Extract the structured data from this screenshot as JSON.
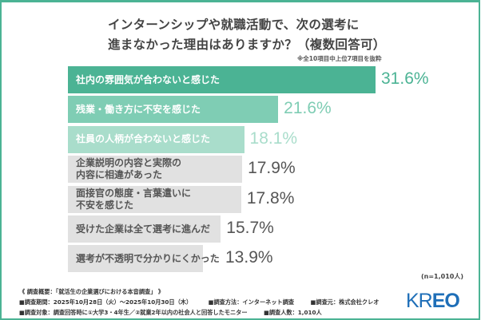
{
  "chart_data": {
    "type": "bar",
    "orientation": "horizontal",
    "title": "インターンシップや就職活動で、次の選考に 進まなかった理由はありますか？（複数回答可）",
    "title_lines": [
      "インターンシップや就職活動で、次の選考に",
      "進まなかった理由はありますか？（複数回答可）"
    ],
    "note": "※全10項目中上位7項目を抜粋",
    "unit": "%",
    "categories": [
      "社内の雰囲気が合わないと感じた",
      "残業・働き方に不安を感じた",
      "社員の人柄が合わないと感じた",
      "企業説明の内容と実際の\n内容に相違があった",
      "面接官の態度・言葉遣いに\n不安を感じた",
      "受けた企業は全て選考に進んだ",
      "選考が不透明で分かりにくかった"
    ],
    "values": [
      31.6,
      21.6,
      18.1,
      17.9,
      17.8,
      15.7,
      13.9
    ],
    "value_labels": [
      "31.6%",
      "21.6%",
      "18.1%",
      "17.9%",
      "17.8%",
      "15.7%",
      "13.9%"
    ],
    "bar_colors": [
      "#4bb394",
      "#7fcdb4",
      "#a9ddcb",
      "#e1e1e1",
      "#e1e1e1",
      "#e1e1e1",
      "#e1e1e1"
    ],
    "label_colors": [
      "#ffffff",
      "#ffffff",
      "#ffffff",
      "#555555",
      "#555555",
      "#555555",
      "#555555"
    ],
    "value_colors": [
      "#4bb394",
      "#7fcdb4",
      "#a9ddcb",
      "#555555",
      "#555555",
      "#555555",
      "#555555"
    ],
    "grid": false,
    "legend": "none",
    "sample_size": "(n=1,010人)"
  },
  "footer": {
    "overview": "《 調査概要：「就活生の企業選びにおける本音調査」 》",
    "period": "■調査期間：2025年10月28日（火）～2025年10月30日（木）",
    "method": "■調査方法：インターネット調査",
    "source": "■調査元：株式会社クレオ",
    "target": "■調査対象：調査回答時に①大学3・4年生／②就業2年以内の社会人と回答したモニター",
    "respondents": "■調査人数：1,010人"
  },
  "logo": {
    "text": "KREO",
    "part1": "KR",
    "part2": "EO",
    "color": "#1f6fb8"
  },
  "frame_color": "#4bb394"
}
